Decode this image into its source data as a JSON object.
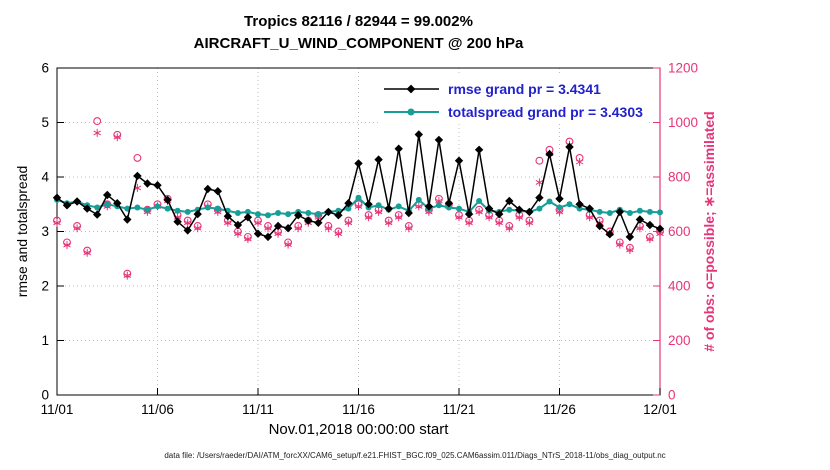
{
  "title": {
    "line1": "Tropics 82116 / 82944 = 99.002%",
    "line2": "AIRCRAFT_U_WIND_COMPONENT @ 200 hPa"
  },
  "footer_text": "data file: /Users/raeder/DAI/ATM_forcXX/CAM6_setup/f.e21.FHIST_BGC.f09_025.CAM6assim.011/Diags_NTrS_2018-11/obs_diag_output.nc",
  "chart_data": {
    "type": "line",
    "title_line1": "Tropics 82116 / 82944 = 99.002%",
    "title_line2": "AIRCRAFT_U_WIND_COMPONENT @ 200 hPa",
    "xlabel": "Nov.01,2018 00:00:00 start",
    "ylabel_left": "rmse and totalspread",
    "ylabel_right": "# of obs: o=possible; ∗=assimilated",
    "grid": true,
    "legend_position": "top-center-inside",
    "x_axis": {
      "min": 0,
      "max": 30,
      "unit": "days since Nov 01 2018"
    },
    "x_ticks": {
      "positions": [
        0,
        5,
        10,
        15,
        20,
        25,
        30
      ],
      "labels": [
        "11/01",
        "11/06",
        "11/11",
        "11/16",
        "11/21",
        "11/26",
        "12/01"
      ]
    },
    "y_left": {
      "min": 0,
      "max": 6,
      "ticks": [
        0,
        1,
        2,
        3,
        4,
        5,
        6
      ]
    },
    "y_right": {
      "min": 0,
      "max": 1200,
      "ticks": [
        0,
        200,
        400,
        600,
        800,
        1000,
        1200
      ]
    },
    "colors": {
      "rmse": "#000000",
      "totalspread": "#189e98",
      "obs": "#e63578",
      "grid": "#bdbdbd",
      "axis": "#000000",
      "legend_text": "#2222cc"
    },
    "grand": {
      "rmse": 3.4341,
      "totalspread": 3.4303
    },
    "x_days": [
      0,
      0.5,
      1,
      1.5,
      2,
      2.5,
      3,
      3.5,
      4,
      4.5,
      5,
      5.5,
      6,
      6.5,
      7,
      7.5,
      8,
      8.5,
      9,
      9.5,
      10,
      10.5,
      11,
      11.5,
      12,
      12.5,
      13,
      13.5,
      14,
      14.5,
      15,
      15.5,
      16,
      16.5,
      17,
      17.5,
      18,
      18.5,
      19,
      19.5,
      20,
      20.5,
      21,
      21.5,
      22,
      22.5,
      23,
      23.5,
      24,
      24.5,
      25,
      25.5,
      26,
      26.5,
      27,
      27.5,
      28,
      28.5,
      29,
      29.5,
      30
    ],
    "series": [
      {
        "name": "rmse",
        "label": "rmse grand pr = 3.4341",
        "marker": "diamond",
        "color": "#000000",
        "values": [
          3.62,
          3.48,
          3.55,
          3.42,
          3.31,
          3.67,
          3.52,
          3.22,
          4.02,
          3.88,
          3.85,
          3.58,
          3.18,
          3.02,
          3.32,
          3.78,
          3.74,
          3.28,
          3.12,
          3.26,
          2.96,
          2.9,
          3.1,
          3.06,
          3.3,
          3.2,
          3.16,
          3.36,
          3.3,
          3.52,
          4.25,
          3.5,
          4.32,
          3.42,
          4.52,
          3.34,
          4.78,
          3.46,
          4.68,
          3.52,
          4.3,
          3.32,
          4.5,
          3.42,
          3.32,
          3.56,
          3.4,
          3.36,
          3.62,
          4.42,
          3.6,
          4.55,
          3.5,
          3.42,
          3.1,
          2.95,
          3.36,
          2.9,
          3.22,
          3.12,
          3.05
        ]
      },
      {
        "name": "totalspread",
        "label": "totalspread grand pr = 3.4303",
        "marker": "circle",
        "color": "#189e98",
        "values": [
          3.58,
          3.52,
          3.55,
          3.48,
          3.44,
          3.5,
          3.46,
          3.42,
          3.44,
          3.4,
          3.46,
          3.42,
          3.38,
          3.36,
          3.4,
          3.44,
          3.42,
          3.38,
          3.34,
          3.36,
          3.32,
          3.3,
          3.34,
          3.32,
          3.36,
          3.34,
          3.32,
          3.36,
          3.38,
          3.42,
          3.62,
          3.44,
          3.48,
          3.4,
          3.46,
          3.38,
          3.58,
          3.42,
          3.48,
          3.44,
          3.42,
          3.36,
          3.56,
          3.38,
          3.36,
          3.4,
          3.38,
          3.36,
          3.42,
          3.55,
          3.44,
          3.5,
          3.42,
          3.4,
          3.36,
          3.34,
          3.4,
          3.34,
          3.38,
          3.36,
          3.35
        ]
      }
    ],
    "obs_counts": {
      "axis": "right",
      "possible_marker": "open-circle",
      "assimilated_marker": "asterisk",
      "possible": [
        640,
        560,
        620,
        530,
        1005,
        700,
        955,
        445,
        870,
        680,
        700,
        720,
        660,
        640,
        620,
        700,
        680,
        640,
        600,
        580,
        640,
        620,
        600,
        560,
        620,
        640,
        660,
        620,
        600,
        640,
        700,
        660,
        680,
        640,
        660,
        620,
        700,
        680,
        720,
        700,
        660,
        640,
        680,
        660,
        640,
        620,
        660,
        640,
        860,
        900,
        680,
        930,
        870,
        660,
        640,
        600,
        560,
        540,
        620,
        580,
        600
      ],
      "assimilated": [
        632,
        550,
        612,
        522,
        962,
        692,
        946,
        438,
        760,
        672,
        692,
        712,
        652,
        632,
        612,
        692,
        672,
        632,
        592,
        572,
        632,
        612,
        592,
        552,
        612,
        632,
        652,
        612,
        592,
        632,
        692,
        652,
        672,
        632,
        652,
        612,
        692,
        672,
        712,
        692,
        652,
        632,
        672,
        652,
        632,
        612,
        652,
        632,
        780,
        885,
        672,
        918,
        855,
        652,
        632,
        592,
        552,
        532,
        612,
        572,
        592
      ]
    }
  }
}
